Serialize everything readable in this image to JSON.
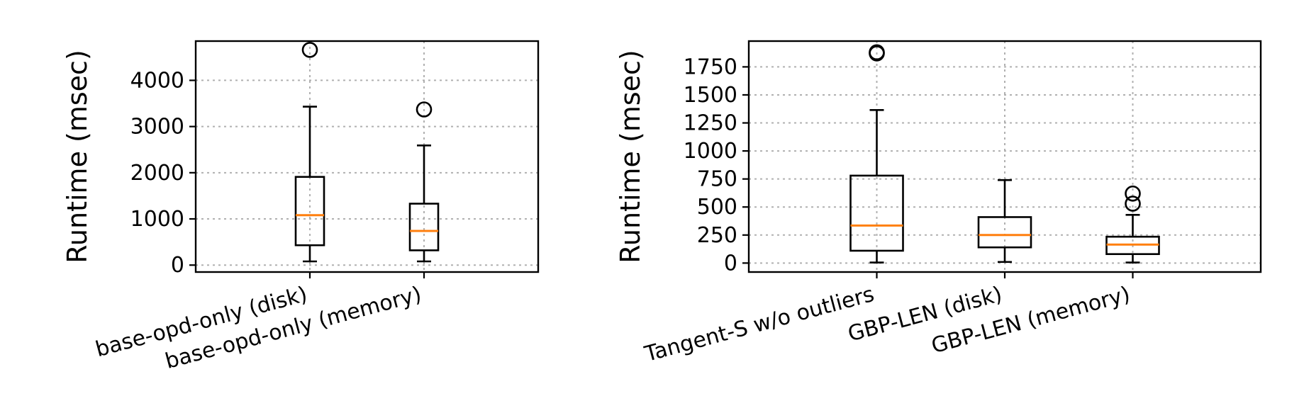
{
  "chart_data": [
    {
      "type": "box",
      "title": "",
      "xlabel": "",
      "ylabel": "Runtime (msec)",
      "ylim": [
        -150,
        4850
      ],
      "yticks": [
        0,
        1000,
        2000,
        3000,
        4000
      ],
      "grid": true,
      "categories": [
        "base-opd-only (disk)",
        "base-opd-only (memory)"
      ],
      "boxes": [
        {
          "whisker_low": 80,
          "q1": 430,
          "median": 1080,
          "q3": 1910,
          "whisker_high": 3430,
          "fliers": [
            4660
          ]
        },
        {
          "whisker_low": 80,
          "q1": 320,
          "median": 740,
          "q3": 1330,
          "whisker_high": 2590,
          "fliers": [
            3370
          ]
        }
      ]
    },
    {
      "type": "box",
      "title": "",
      "xlabel": "",
      "ylabel": "Runtime (msec)",
      "ylim": [
        -80,
        1980
      ],
      "yticks": [
        0,
        250,
        500,
        750,
        1000,
        1250,
        1500,
        1750
      ],
      "grid": true,
      "categories": [
        "Tangent-S w/o outliers",
        "GBP-LEN (disk)",
        "GBP-LEN (memory)"
      ],
      "boxes": [
        {
          "whisker_low": 5,
          "q1": 110,
          "median": 335,
          "q3": 780,
          "whisker_high": 1365,
          "fliers": [
            1870,
            1880
          ]
        },
        {
          "whisker_low": 10,
          "q1": 140,
          "median": 250,
          "q3": 410,
          "whisker_high": 740,
          "fliers": []
        },
        {
          "whisker_low": 5,
          "q1": 80,
          "median": 165,
          "q3": 235,
          "whisker_high": 430,
          "fliers": [
            530,
            620
          ]
        }
      ]
    }
  ]
}
